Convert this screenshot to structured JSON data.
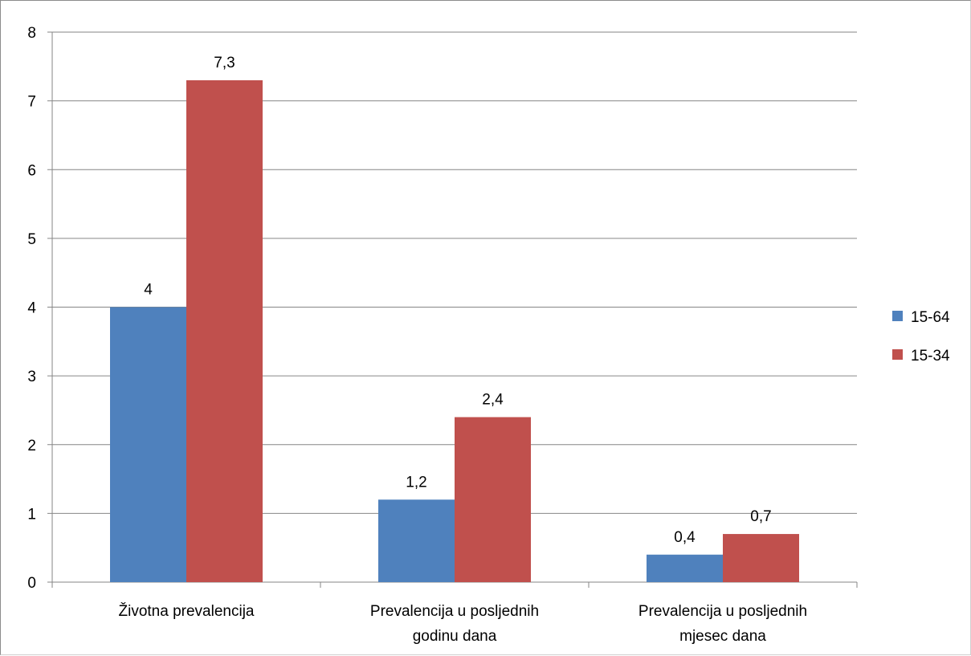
{
  "chart_data": {
    "type": "bar",
    "title": "",
    "xlabel": "",
    "ylabel": "",
    "ylim": [
      0,
      8
    ],
    "yticks": [
      "0",
      "1",
      "2",
      "3",
      "4",
      "5",
      "6",
      "7",
      "8"
    ],
    "grid": true,
    "legend_position": "right",
    "categories": [
      [
        "Životna prevalencija"
      ],
      [
        "Prevalencija u posljednih",
        "godinu dana"
      ],
      [
        "Prevalencija u posljednih",
        "mjesec dana"
      ]
    ],
    "series": [
      {
        "name": "15-64",
        "color": "#4f81bd",
        "values": [
          4,
          1.2,
          0.4
        ],
        "labels": [
          "4",
          "1,2",
          "0,4"
        ]
      },
      {
        "name": "15-34",
        "color": "#c0504d",
        "values": [
          7.3,
          2.4,
          0.7
        ],
        "labels": [
          "7,3",
          "2,4",
          "0,7"
        ]
      }
    ]
  }
}
